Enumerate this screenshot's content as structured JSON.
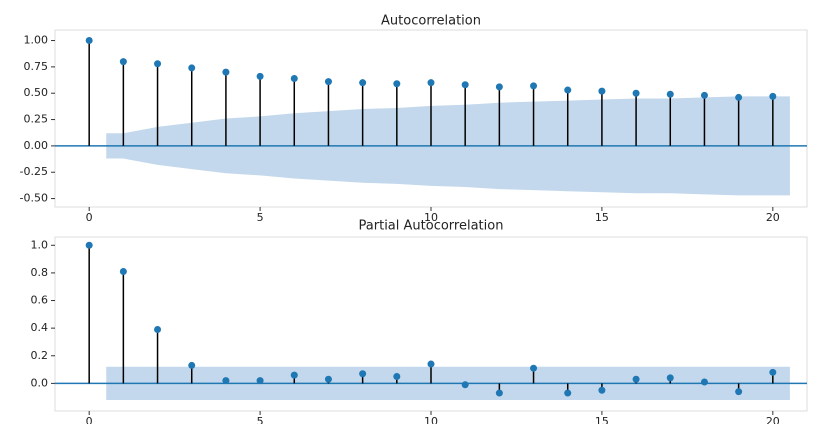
{
  "chart_data": [
    {
      "type": "stem",
      "title": "Autocorrelation",
      "x": [
        0,
        1,
        2,
        3,
        4,
        5,
        6,
        7,
        8,
        9,
        10,
        11,
        12,
        13,
        14,
        15,
        16,
        17,
        18,
        19,
        20
      ],
      "values": [
        1.0,
        0.8,
        0.78,
        0.74,
        0.7,
        0.66,
        0.64,
        0.61,
        0.6,
        0.59,
        0.6,
        0.58,
        0.56,
        0.57,
        0.53,
        0.52,
        0.5,
        0.49,
        0.48,
        0.46,
        0.47
      ],
      "color": "#1f77b4",
      "stem_color": "#000000",
      "band_color": "#c3d8ec",
      "band": {
        "x": [
          0.5,
          1,
          2,
          3,
          4,
          5,
          6,
          7,
          8,
          9,
          10,
          11,
          12,
          13,
          14,
          15,
          16,
          17,
          18,
          19,
          20,
          20.5
        ],
        "upper": [
          0.12,
          0.12,
          0.18,
          0.22,
          0.26,
          0.28,
          0.31,
          0.33,
          0.35,
          0.36,
          0.38,
          0.39,
          0.41,
          0.42,
          0.43,
          0.44,
          0.45,
          0.45,
          0.46,
          0.47,
          0.47,
          0.47
        ],
        "lower": [
          -0.12,
          -0.12,
          -0.18,
          -0.22,
          -0.26,
          -0.28,
          -0.31,
          -0.33,
          -0.35,
          -0.36,
          -0.38,
          -0.39,
          -0.41,
          -0.42,
          -0.43,
          -0.44,
          -0.45,
          -0.45,
          -0.46,
          -0.47,
          -0.47,
          -0.47
        ]
      },
      "xlim": [
        -1,
        21
      ],
      "xticks": [
        0,
        5,
        10,
        15,
        20
      ],
      "ylim": [
        -0.58,
        1.1
      ],
      "yticks": [
        {
          "value": -0.5,
          "label": "-0.50"
        },
        {
          "value": -0.25,
          "label": "-0.25"
        },
        {
          "value": 0,
          "label": "0.00"
        },
        {
          "value": 0.25,
          "label": "0.25"
        },
        {
          "value": 0.5,
          "label": "0.50"
        },
        {
          "value": 0.75,
          "label": "0.75"
        },
        {
          "value": 1,
          "label": "1.00"
        }
      ]
    },
    {
      "type": "stem",
      "title": "Partial Autocorrelation",
      "x": [
        0,
        1,
        2,
        3,
        4,
        5,
        6,
        7,
        8,
        9,
        10,
        11,
        12,
        13,
        14,
        15,
        16,
        17,
        18,
        19,
        20
      ],
      "values": [
        1.0,
        0.81,
        0.39,
        0.13,
        0.02,
        0.02,
        0.06,
        0.03,
        0.07,
        0.05,
        0.14,
        -0.01,
        -0.07,
        0.11,
        -0.07,
        -0.05,
        0.03,
        0.04,
        0.01,
        -0.06,
        0.08
      ],
      "color": "#1f77b4",
      "stem_color": "#000000",
      "band_color": "#c3d8ec",
      "band": {
        "x": [
          0.5,
          20.5
        ],
        "upper": [
          0.12,
          0.12
        ],
        "lower": [
          -0.12,
          -0.12
        ]
      },
      "xlim": [
        -1,
        21
      ],
      "xticks": [
        0,
        5,
        10,
        15,
        20
      ],
      "ylim": [
        -0.2,
        1.06
      ],
      "yticks": [
        {
          "value": 0,
          "label": "0.0"
        },
        0.2,
        0.4,
        0.6,
        0.8,
        {
          "value": 1,
          "label": "1.0"
        }
      ]
    }
  ]
}
